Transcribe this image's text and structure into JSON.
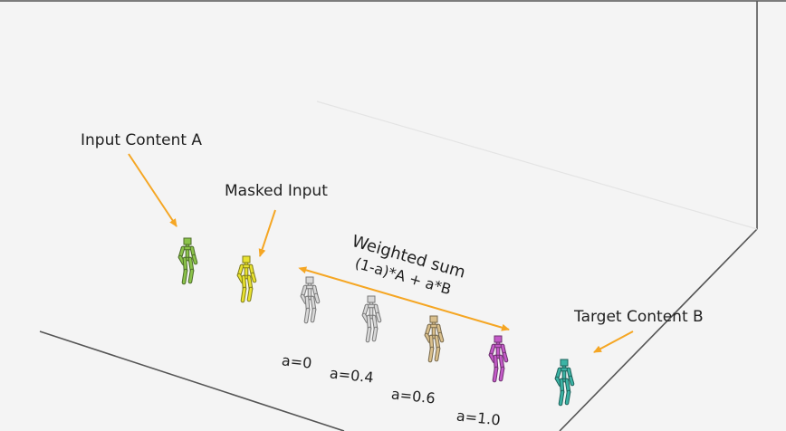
{
  "colors": {
    "background": "#f4f4f4",
    "arrow": "#f5a623",
    "figure_a": "#8bc34a",
    "figure_masked": "#e8e230",
    "figure_grey": "#d8d8d8",
    "figure_tan": "#d9bf8c",
    "figure_magenta": "#c45ac8",
    "figure_teal": "#3bb3a5"
  },
  "annotations": {
    "input_a": "Input Content A",
    "masked": "Masked Input",
    "target_b": "Target Content B",
    "weighted_sum": "Weighted sum",
    "formula": "(1-a)*A + a*B"
  },
  "alpha_labels": [
    "a=0",
    "a=0.4",
    "a=0.6",
    "a=1.0"
  ],
  "figures": [
    {
      "name": "input-a",
      "color": "#8bc34a"
    },
    {
      "name": "masked-input",
      "color": "#e8e230"
    },
    {
      "name": "blend-a0",
      "color": "#d8d8d8"
    },
    {
      "name": "blend-a04",
      "color": "#d8d8d8"
    },
    {
      "name": "blend-a06",
      "color": "#d9bf8c"
    },
    {
      "name": "blend-a10",
      "color": "#c45ac8"
    },
    {
      "name": "target-b",
      "color": "#3bb3a5"
    }
  ]
}
